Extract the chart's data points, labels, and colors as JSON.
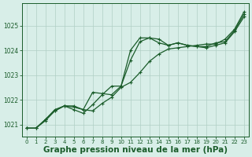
{
  "background_color": "#d8eee8",
  "grid_color": "#b0cfc5",
  "line_color": "#1a5c2a",
  "xlabel": "Graphe pression niveau de la mer (hPa)",
  "xlabel_fontsize": 7.5,
  "xlim": [
    -0.5,
    23.5
  ],
  "ylim": [
    1020.5,
    1025.9
  ],
  "yticks": [
    1021,
    1022,
    1023,
    1024,
    1025
  ],
  "xticks": [
    0,
    1,
    2,
    3,
    4,
    5,
    6,
    7,
    8,
    9,
    10,
    11,
    12,
    13,
    14,
    15,
    16,
    17,
    18,
    19,
    20,
    21,
    22,
    23
  ],
  "series1_x": [
    0,
    1,
    2,
    3,
    4,
    5,
    6,
    7,
    8,
    9,
    10,
    11,
    12,
    13,
    14,
    15,
    16,
    17,
    18,
    19,
    20,
    21,
    22,
    23
  ],
  "series1": [
    1020.85,
    1020.85,
    1021.15,
    1021.55,
    1021.75,
    1021.7,
    1021.6,
    1021.55,
    1021.85,
    1022.1,
    1022.5,
    1022.7,
    1023.1,
    1023.55,
    1023.85,
    1024.05,
    1024.1,
    1024.15,
    1024.2,
    1024.25,
    1024.25,
    1024.45,
    1024.85,
    1025.55
  ],
  "series2_x": [
    0,
    1,
    2,
    3,
    4,
    5,
    6,
    7,
    8,
    9,
    10,
    11,
    12,
    13,
    14,
    15,
    16,
    17,
    18,
    19,
    20,
    21,
    22,
    23
  ],
  "series2": [
    1020.85,
    1020.85,
    1021.2,
    1021.6,
    1021.75,
    1021.75,
    1021.6,
    1022.3,
    1022.25,
    1022.2,
    1022.55,
    1023.6,
    1024.35,
    1024.5,
    1024.45,
    1024.2,
    1024.3,
    1024.2,
    1024.15,
    1024.1,
    1024.2,
    1024.3,
    1024.75,
    1025.35
  ],
  "series3_x": [
    0,
    1,
    2,
    3,
    4,
    5,
    6,
    7,
    8,
    9,
    10,
    11,
    12,
    13,
    14,
    15,
    16,
    17,
    18,
    19,
    20,
    21,
    22,
    23
  ],
  "series3": [
    1020.85,
    1020.85,
    1021.2,
    1021.55,
    1021.75,
    1021.6,
    1021.45,
    1021.8,
    1022.2,
    1022.55,
    1022.55,
    1024.0,
    1024.5,
    1024.5,
    1024.3,
    1024.2,
    1024.3,
    1024.2,
    1024.15,
    1024.15,
    1024.3,
    1024.35,
    1024.8,
    1025.45
  ]
}
